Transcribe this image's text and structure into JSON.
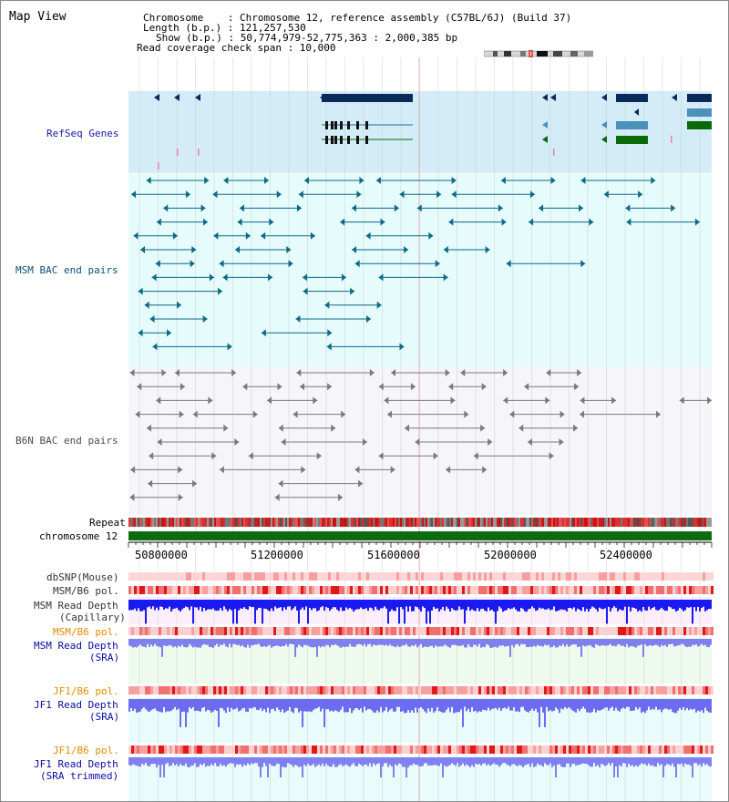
{
  "page": {
    "title": "Map View"
  },
  "info": {
    "chromosome": "Chromosome    : Chromosome 12, reference assembly (C57BL/6J) (Build 37)",
    "length": "Length (b.p.) : 121,257,530",
    "show": "Show (b.p.) : 50,774,979-52,775,363 : 2,000,385 bp",
    "coverage": "Read coverage check span : 10,000"
  },
  "tracks": {
    "refseq": "RefSeq Genes",
    "msm_bac": "MSM BAC end pairs",
    "b6n_bac": "B6N BAC end pairs",
    "repeat": "Repeat",
    "chromosome": "chromosome 12",
    "dbsnp": "dbSNP(Mouse)",
    "msm_b6_pol": "MSM/B6 pol.",
    "msm_depth_cap_1": "MSM Read Depth",
    "msm_depth_cap_2": "(Capillary)",
    "msm_b6_pol_2": "MSM/B6 pol.",
    "msm_depth_sra_1": "MSM Read Depth",
    "msm_depth_sra_2": "(SRA)",
    "jf1_b6_pol": "JF1/B6 pol.",
    "jf1_depth_1": "JF1 Read Depth",
    "jf1_depth_2": "(SRA)",
    "jf1_b6_pol_2": "JF1/B6 pol.",
    "jf1_trim_1": "JF1 Read Depth",
    "jf1_trim_2": "(SRA trimmed)"
  },
  "axis": {
    "ticks": [
      "50800000",
      "51200000",
      "51600000",
      "52000000",
      "52400000"
    ]
  },
  "colors": {
    "refseq_label": "#1a1aa8",
    "msm_label": "#0b4f79",
    "b6n_label": "#4a4a4a",
    "pol_label_orange": "#e58a00",
    "depth_label_blue": "#0a0aa0",
    "refseq_bg": "#d4ecf7",
    "msm_bg": "#e6fbfb",
    "chrom_green": "#0f6b0f",
    "depth_blue": "#2a2ae8"
  }
}
